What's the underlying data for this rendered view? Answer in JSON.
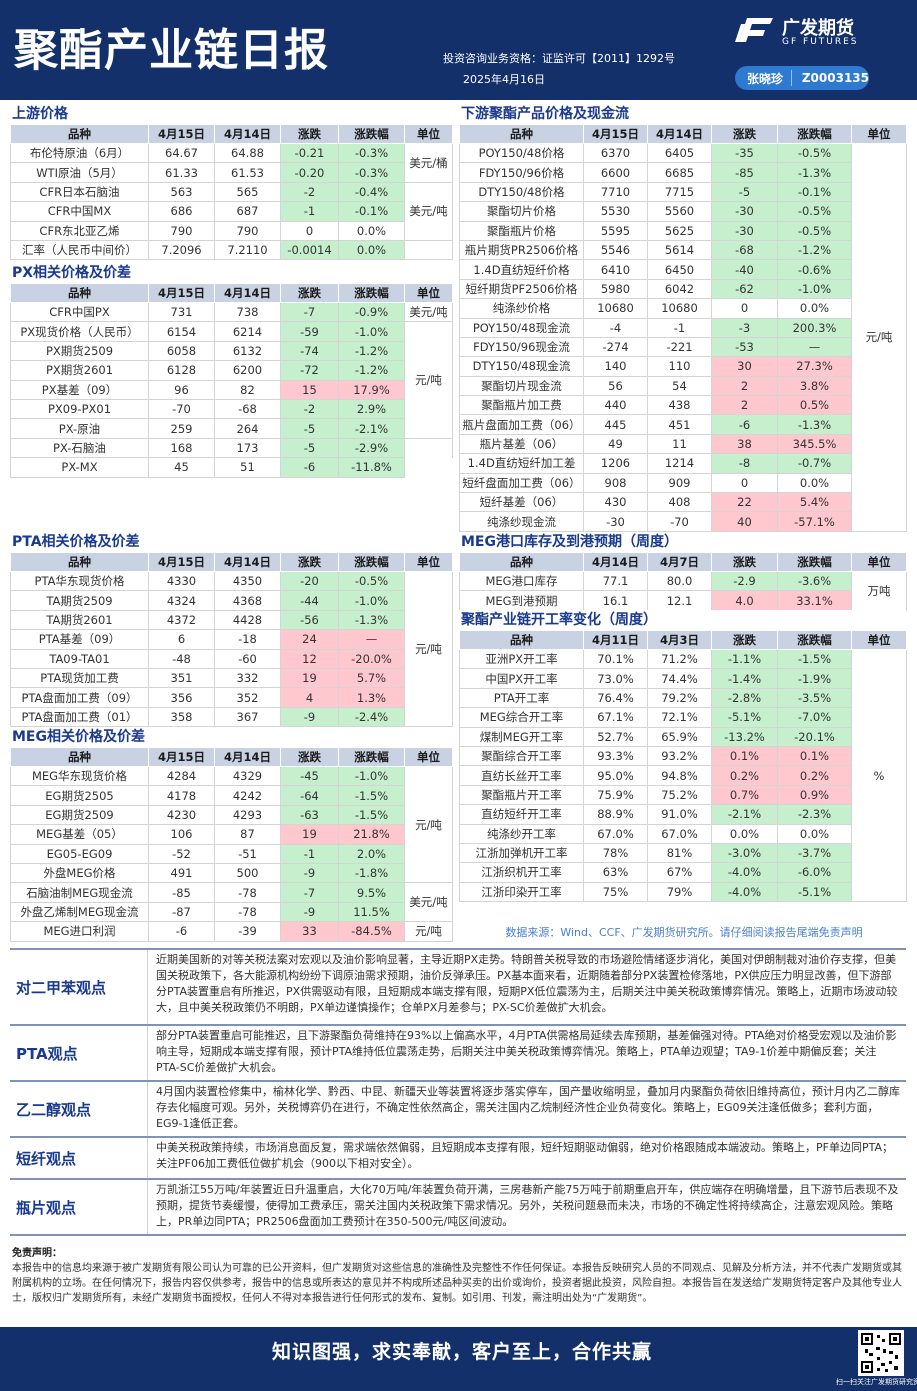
{
  "header": {
    "title": "聚酯产业链日报",
    "qualification": "投资咨询业务资格：证监许可【2011】1292号",
    "date": "2025年4月16日",
    "brand_cn": "广发期货",
    "brand_en": "GF FUTURES",
    "analyst_name": "张晓珍",
    "analyst_id": "Z0003135"
  },
  "tables": {
    "upstream": {
      "title": "上游价格",
      "headers": [
        "品种",
        "4月15日",
        "4月14日",
        "涨跌",
        "涨跌幅",
        "单位"
      ],
      "rows": [
        [
          "布伦特原油（6月）",
          "64.67",
          "64.88",
          "-0.21",
          "-0.3%"
        ],
        [
          "WTI原油（5月）",
          "61.33",
          "61.53",
          "-0.20",
          "-0.3%"
        ],
        [
          "CFR日本石脑油",
          "563",
          "565",
          "-2",
          "-0.4%"
        ],
        [
          "CFR中国MX",
          "686",
          "687",
          "-1",
          "-0.1%"
        ],
        [
          "CFR东北亚乙烯",
          "790",
          "790",
          "0",
          "0.0%"
        ],
        [
          "汇率（人民币中间价）",
          "7.2096",
          "7.2110",
          "-0.0014",
          "0.0%"
        ]
      ],
      "units": [
        "美元/桶",
        "美元/吨",
        ""
      ]
    },
    "px": {
      "title": "PX相关价格及价差",
      "headers": [
        "品种",
        "4月15日",
        "4月14日",
        "涨跌",
        "涨跌幅",
        "单位"
      ],
      "rows": [
        [
          "CFR中国PX",
          "731",
          "738",
          "-7",
          "-0.9%"
        ],
        [
          "PX现货价格（人民币）",
          "6154",
          "6214",
          "-59",
          "-1.0%"
        ],
        [
          "PX期货2509",
          "6058",
          "6132",
          "-74",
          "-1.2%"
        ],
        [
          "PX期货2601",
          "6128",
          "6200",
          "-72",
          "-1.2%"
        ],
        [
          "PX基差（09）",
          "96",
          "82",
          "15",
          "17.9%"
        ],
        [
          "PX09-PX01",
          "-70",
          "-68",
          "-2",
          "2.9%"
        ],
        [
          "PX-原油",
          "259",
          "264",
          "-5",
          "-2.1%"
        ],
        [
          "PX-石脑油",
          "168",
          "173",
          "-5",
          "-2.9%"
        ],
        [
          "PX-MX",
          "45",
          "51",
          "-6",
          "-11.8%"
        ]
      ],
      "units": [
        "美元/吨",
        "元/吨",
        "美元/吨"
      ]
    },
    "pta": {
      "title": "PTA相关价格及价差",
      "headers": [
        "品种",
        "4月15日",
        "4月14日",
        "涨跌",
        "涨跌幅",
        "单位"
      ],
      "rows": [
        [
          "PTA华东现货价格",
          "4330",
          "4350",
          "-20",
          "-0.5%"
        ],
        [
          "TA期货2509",
          "4324",
          "4368",
          "-44",
          "-1.0%"
        ],
        [
          "TA期货2601",
          "4372",
          "4428",
          "-56",
          "-1.3%"
        ],
        [
          "PTA基差（09）",
          "6",
          "-18",
          "24",
          "—"
        ],
        [
          "TA09-TA01",
          "-48",
          "-60",
          "12",
          "-20.0%"
        ],
        [
          "PTA现货加工费",
          "351",
          "332",
          "19",
          "5.7%"
        ],
        [
          "PTA盘面加工费（09）",
          "356",
          "352",
          "4",
          "1.3%"
        ],
        [
          "PTA盘面加工费（01）",
          "358",
          "367",
          "-9",
          "-2.4%"
        ]
      ],
      "units": [
        "元/吨"
      ]
    },
    "meg": {
      "title": "MEG相关价格及价差",
      "headers": [
        "品种",
        "4月15日",
        "4月14日",
        "涨跌",
        "涨跌幅",
        "单位"
      ],
      "rows": [
        [
          "MEG华东现货价格",
          "4284",
          "4329",
          "-45",
          "-1.0%"
        ],
        [
          "EG期货2505",
          "4178",
          "4242",
          "-64",
          "-1.5%"
        ],
        [
          "EG期货2509",
          "4230",
          "4293",
          "-63",
          "-1.5%"
        ],
        [
          "MEG基差（05）",
          "106",
          "87",
          "19",
          "21.8%"
        ],
        [
          "EG05-EG09",
          "-52",
          "-51",
          "-1",
          "2.0%"
        ],
        [
          "外盘MEG价格",
          "491",
          "500",
          "-9",
          "-1.8%"
        ],
        [
          "石脑油制MEG现金流",
          "-85",
          "-78",
          "-7",
          "9.5%"
        ],
        [
          "外盘乙烯制MEG现金流",
          "-87",
          "-78",
          "-9",
          "11.5%"
        ],
        [
          "MEG进口利润",
          "-6",
          "-39",
          "33",
          "-84.5%"
        ]
      ],
      "units": [
        "元/吨",
        "美元/吨",
        "元/吨"
      ]
    },
    "downstream": {
      "title": "下游聚酯产品价格及现金流",
      "headers": [
        "品种",
        "4月15日",
        "4月14日",
        "涨跌",
        "涨跌幅",
        "单位"
      ],
      "rows": [
        [
          "POY150/48价格",
          "6370",
          "6405",
          "-35",
          "-0.5%"
        ],
        [
          "FDY150/96价格",
          "6600",
          "6685",
          "-85",
          "-1.3%"
        ],
        [
          "DTY150/48价格",
          "7710",
          "7715",
          "-5",
          "-0.1%"
        ],
        [
          "聚酯切片价格",
          "5530",
          "5560",
          "-30",
          "-0.5%"
        ],
        [
          "聚酯瓶片价格",
          "5595",
          "5625",
          "-30",
          "-0.5%"
        ],
        [
          "瓶片期货PR2506价格",
          "5546",
          "5614",
          "-68",
          "-1.2%"
        ],
        [
          "1.4D直纺短纤价格",
          "6410",
          "6450",
          "-40",
          "-0.6%"
        ],
        [
          "短纤期货PF2506价格",
          "5980",
          "6042",
          "-62",
          "-1.0%"
        ],
        [
          "纯涤纱价格",
          "10680",
          "10680",
          "0",
          "0.0%"
        ],
        [
          "POY150/48现金流",
          "-4",
          "-1",
          "-3",
          "200.3%"
        ],
        [
          "FDY150/96现金流",
          "-274",
          "-221",
          "-53",
          "—"
        ],
        [
          "DTY150/48现金流",
          "140",
          "110",
          "30",
          "27.3%"
        ],
        [
          "聚酯切片现金流",
          "56",
          "54",
          "2",
          "3.8%"
        ],
        [
          "聚酯瓶片加工费",
          "440",
          "438",
          "2",
          "0.5%"
        ],
        [
          "瓶片盘面加工费（06）",
          "445",
          "451",
          "-6",
          "-1.3%"
        ],
        [
          "瓶片基差（06）",
          "49",
          "11",
          "38",
          "345.5%"
        ],
        [
          "1.4D直纺短纤加工差",
          "1206",
          "1214",
          "-8",
          "-0.7%"
        ],
        [
          "短纤盘面加工费（06）",
          "908",
          "909",
          "0",
          "0.0%"
        ],
        [
          "短纤基差（06）",
          "430",
          "408",
          "22",
          "5.4%"
        ],
        [
          "纯涤纱现金流",
          "-30",
          "-70",
          "40",
          "-57.1%"
        ]
      ],
      "units": [
        "元/吨"
      ]
    },
    "meg_port": {
      "title": "MEG港口库存及到港预期（周度）",
      "headers": [
        "品种",
        "4月14日",
        "4月7日",
        "涨跌",
        "涨跌幅",
        "单位"
      ],
      "rows": [
        [
          "MEG港口库存",
          "77.1",
          "80.0",
          "-2.9",
          "-3.6%"
        ],
        [
          "MEG到港预期",
          "16.1",
          "12.1",
          "4.0",
          "33.1%"
        ]
      ],
      "units": [
        "万吨"
      ]
    },
    "oprate": {
      "title": "聚酯产业链开工率变化（周度）",
      "headers": [
        "品种",
        "4月11日",
        "4月3日",
        "涨跌",
        "涨跌幅",
        "单位"
      ],
      "rows": [
        [
          "亚洲PX开工率",
          "70.1%",
          "71.2%",
          "-1.1%",
          "-1.5%"
        ],
        [
          "中国PX开工率",
          "73.0%",
          "74.4%",
          "-1.4%",
          "-1.9%"
        ],
        [
          "PTA开工率",
          "76.4%",
          "79.2%",
          "-2.8%",
          "-3.5%"
        ],
        [
          "MEG综合开工率",
          "67.1%",
          "72.1%",
          "-5.1%",
          "-7.0%"
        ],
        [
          "煤制MEG开工率",
          "52.7%",
          "65.9%",
          "-13.2%",
          "-20.1%"
        ],
        [
          "聚酯综合开工率",
          "93.3%",
          "93.2%",
          "0.1%",
          "0.1%"
        ],
        [
          "直纺长丝开工率",
          "95.0%",
          "94.8%",
          "0.2%",
          "0.2%"
        ],
        [
          "聚酯瓶片开工率",
          "75.9%",
          "75.2%",
          "0.7%",
          "0.9%"
        ],
        [
          "直纺短纤开工率",
          "88.9%",
          "91.0%",
          "-2.1%",
          "-2.3%"
        ],
        [
          "纯涤纱开工率",
          "67.0%",
          "67.0%",
          "0.0%",
          "0.0%"
        ],
        [
          "江浙加弹机开工率",
          "78%",
          "81%",
          "-3.0%",
          "-3.7%"
        ],
        [
          "江浙织机开工率",
          "63%",
          "67%",
          "-4.0%",
          "-6.0%"
        ],
        [
          "江浙印染开工率",
          "75%",
          "79%",
          "-4.0%",
          "-5.1%"
        ]
      ],
      "units": [
        "%"
      ]
    }
  },
  "source": "数据来源：Wind、CCF、广发期货研究所。请仔细阅读报告尾端免责声明",
  "views": [
    {
      "label": "对二甲苯观点",
      "text": "近期美国新的对等关税法案对宏观以及油价影响显著，主导近期PX走势。特朗普关税导致的市场避险情绪逐步消化，美国对伊朗制裁对油价存支撑，但美国关税政策下，各大能源机构纷纷下调原油需求预期，油价反弹承压。PX基本面来看，近期随着部分PX装置检修落地，PX供应压力明显改善，但下游部分PTA装置重启有所推迟，PX供需驱动有限，且短期成本端支撑有限，短期PX低位震荡为主，后期关注中美关税政策博弈情况。策略上，近期市场波动较大，且中美关税政策仍不明朗，PX单边谨慎操作；仓单PX月差参与；PX-SC价差做扩大机会。"
    },
    {
      "label": "PTA观点",
      "text": "部分PTA装置重启可能推迟，且下游聚酯负荷维持在93%以上偏高水平，4月PTA供需格局延续去库预期，基差偏强对待。PTA绝对价格受宏观以及油价影响主导，短期成本端支撑有限，预计PTA维持低位震荡走势，后期关注中美关税政策博弈情况。策略上，PTA单边观望；TA9-1价差中期偏反套；关注PTA-SC价差做扩大机会。"
    },
    {
      "label": "乙二醇观点",
      "text": "4月国内装置检修集中，榆林化学、黔西、中昆、新疆天业等装置将逐步落实停车，国产量收缩明显，叠加月内聚酯负荷依旧维持高位，预计月内乙二醇库存去化幅度可观。另外，关税博弈仍在进行，不确定性依然高企，需关注国内乙烷制经济性企业负荷变化。策略上，EG09关注逢低做多；套利方面，EG9-1逢低正套。"
    },
    {
      "label": "短纤观点",
      "text": "中美关税政策持续，市场消息面反复，需求端依然偏弱，且短期成本支撑有限，短纤短期驱动偏弱，绝对价格跟随成本端波动。策略上，PF单边同PTA；关注PF06加工费低位做扩机会（900以下相对安全）。"
    },
    {
      "label": "瓶片观点",
      "text": "万凯浙江55万吨/年装置近日升温重启，大化70万吨/年装置负荷开满，三房巷新产能75万吨于前期重启开车，供应端存在明确增量，且下游节后表现不及预期，提货节奏缓慢，使得加工费承压，需关注国内关税政策下需求情况。另外，关税问题悬而未决，市场的不确定性将持续高企，注意宏观风险。策略上，PR单边同PTA；PR2506盘面加工费预计在350-500元/吨区间波动。"
    }
  ],
  "disclaimer": {
    "title": "免责声明：",
    "text": "本报告中的信息均来源于被广发期货有限公司认为可靠的已公开资料，但广发期货对这些信息的准确性及完整性不作任何保证。本报告反映研究人员的不同观点、见解及分析方法，并不代表广发期货或其附属机构的立场。在任何情况下，报告内容仅供参考，报告中的信息或所表达的意见并不构成所述品种买卖的出价或询价，投资者据此投资，风险自担。本报告旨在发送给广发期货特定客户及其他专业人士，版权归广发期货所有，未经广发期货书面授权，任何人不得对本报告进行任何形式的发布、复制。如引用、刊发，需注明出处为“广发期货”。"
  },
  "footer": {
    "slogan": "知识图强，求实奉献，客户至上，合作共赢",
    "qr_caption": "扫一扫关注广发期货研究资讯"
  },
  "colors": {
    "navy": "#13306b",
    "header_row": "#c9d2e3",
    "negative_fill": "#c6efce",
    "positive_fill": "#ffc7ce",
    "title_blue": "#1a3a8f"
  }
}
